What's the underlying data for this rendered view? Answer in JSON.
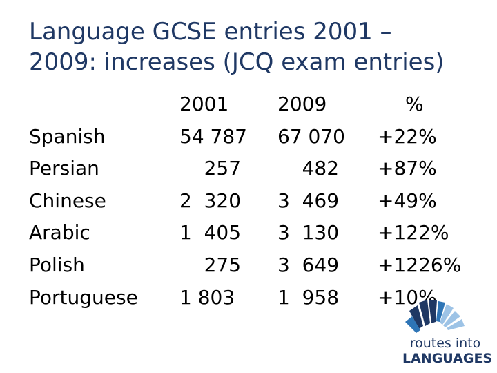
{
  "slide": {
    "title_line1": "Language GCSE entries 2001 –",
    "title_line2": "2009: increases (JCQ exam entries)"
  },
  "table": {
    "headers": {
      "col_2001": "2001",
      "col_2009": "2009",
      "col_pct": "%"
    },
    "rows": [
      {
        "language": "Spanish",
        "y2001": "54 787",
        "y2009": "67 070",
        "pct": "+22%"
      },
      {
        "language": "Persian",
        "y2001": "    257",
        "y2009": "    482",
        "pct": "+87%"
      },
      {
        "language": "Chinese",
        "y2001": "2  320",
        "y2009": "3  469",
        "pct": "+49%"
      },
      {
        "language": "Arabic",
        "y2001": "1  405",
        "y2009": "3  130",
        "pct": "+122%"
      },
      {
        "language": "Polish",
        "y2001": "    275",
        "y2009": "3  649",
        "pct": "+1226%"
      },
      {
        "language": "Portuguese",
        "y2001": "1 803",
        "y2009": "1  958",
        "pct": "+10%"
      }
    ]
  },
  "logo": {
    "line1": "routes into",
    "line2": "LANGUAGES",
    "colors": {
      "dark": "#1f3864",
      "light": "#9dc3e6",
      "mid": "#2e75b6"
    }
  }
}
